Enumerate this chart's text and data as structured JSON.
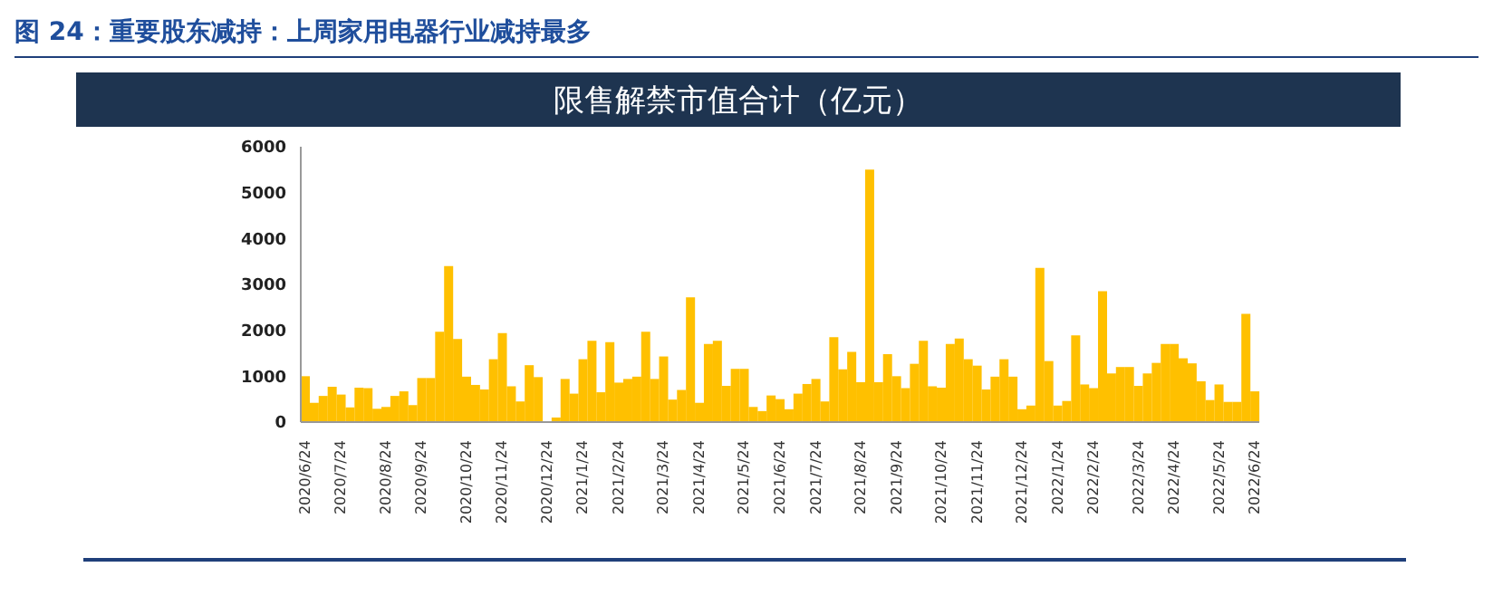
{
  "chart_data": {
    "type": "bar",
    "title": "图 24：重要股东减持：上周家用电器行业减持最多",
    "subtitle": "限售解禁市值合计（亿元）",
    "categories": [
      "2020/6/24",
      null,
      null,
      null,
      "2020/7/24",
      null,
      null,
      null,
      null,
      "2020/8/24",
      null,
      null,
      null,
      "2020/9/24",
      null,
      null,
      null,
      null,
      "2020/10/24",
      null,
      null,
      null,
      "2020/11/24",
      null,
      null,
      null,
      null,
      "2020/12/24",
      null,
      null,
      null,
      "2021/1/24",
      null,
      null,
      null,
      "2021/2/24",
      null,
      null,
      null,
      null,
      "2021/3/24",
      null,
      null,
      null,
      "2021/4/24",
      null,
      null,
      null,
      null,
      "2021/5/24",
      null,
      null,
      null,
      "2021/6/24",
      null,
      null,
      null,
      "2021/7/24",
      null,
      null,
      null,
      null,
      "2021/8/24",
      null,
      null,
      null,
      "2021/9/24",
      null,
      null,
      null,
      null,
      "2021/10/24",
      null,
      null,
      null,
      "2021/11/24",
      null,
      null,
      null,
      null,
      "2021/12/24",
      null,
      null,
      null,
      "2022/1/24",
      null,
      null,
      null,
      "2022/2/24",
      null,
      null,
      null,
      null,
      "2022/3/24",
      null,
      null,
      null,
      "2022/4/24",
      null,
      null,
      null,
      null,
      "2022/5/24",
      null,
      null,
      null,
      "2022/6/24"
    ],
    "values": [
      1000,
      420,
      570,
      770,
      600,
      320,
      750,
      740,
      290,
      330,
      570,
      670,
      370,
      960,
      960,
      1970,
      3400,
      1810,
      990,
      810,
      710,
      1370,
      1940,
      780,
      450,
      1240,
      980,
      0,
      100,
      940,
      620,
      1370,
      1770,
      650,
      1740,
      860,
      940,
      990,
      1970,
      940,
      1430,
      490,
      700,
      2720,
      420,
      1700,
      1770,
      790,
      1160,
      1160,
      330,
      240,
      580,
      500,
      280,
      620,
      830,
      940,
      450,
      1850,
      1150,
      1530,
      870,
      5500,
      870,
      1480,
      1000,
      740,
      1270,
      1770,
      780,
      750,
      1700,
      1820,
      1370,
      1230,
      710,
      990,
      1370,
      990,
      280,
      360,
      3360,
      1330,
      360,
      460,
      1890,
      820,
      740,
      2850,
      1060,
      1200,
      1200,
      790,
      1060,
      1290,
      1700,
      1700,
      1390,
      1280,
      890,
      480,
      820,
      440,
      440,
      2360,
      670
    ],
    "color": "#ffc000",
    "ylim": [
      0,
      6000
    ],
    "yticks": [
      0,
      1000,
      2000,
      3000,
      4000,
      5000,
      6000
    ],
    "grid": false
  }
}
